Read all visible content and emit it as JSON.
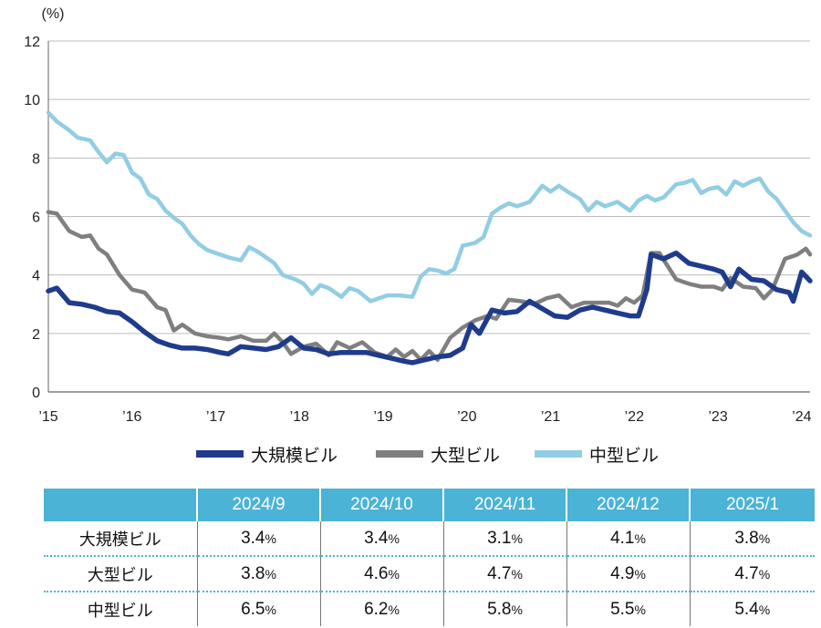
{
  "chart_data": {
    "type": "line",
    "unit_label": "(%)",
    "ylim": [
      0,
      12
    ],
    "yticks": [
      0,
      2,
      4,
      6,
      8,
      10,
      12
    ],
    "xlim": [
      2015,
      2024.1
    ],
    "xticks": [
      {
        "value": 2015,
        "label": "’15"
      },
      {
        "value": 2016,
        "label": "’16"
      },
      {
        "value": 2017,
        "label": "’17"
      },
      {
        "value": 2018,
        "label": "’18"
      },
      {
        "value": 2019,
        "label": "’19"
      },
      {
        "value": 2020,
        "label": "’20"
      },
      {
        "value": 2021,
        "label": "’21"
      },
      {
        "value": 2022,
        "label": "’22"
      },
      {
        "value": 2023,
        "label": "’23"
      },
      {
        "value": 2024,
        "label": "’24"
      }
    ],
    "grid": true,
    "series": [
      {
        "name": "大規模ビル",
        "color": "#1f3b8c",
        "points": [
          [
            2015.0,
            3.45
          ],
          [
            2015.1,
            3.55
          ],
          [
            2015.25,
            3.05
          ],
          [
            2015.4,
            3.0
          ],
          [
            2015.55,
            2.9
          ],
          [
            2015.7,
            2.75
          ],
          [
            2015.85,
            2.7
          ],
          [
            2016.0,
            2.4
          ],
          [
            2016.15,
            2.05
          ],
          [
            2016.3,
            1.75
          ],
          [
            2016.45,
            1.6
          ],
          [
            2016.6,
            1.5
          ],
          [
            2016.75,
            1.5
          ],
          [
            2016.9,
            1.45
          ],
          [
            2017.05,
            1.35
          ],
          [
            2017.15,
            1.3
          ],
          [
            2017.3,
            1.55
          ],
          [
            2017.45,
            1.5
          ],
          [
            2017.6,
            1.45
          ],
          [
            2017.75,
            1.55
          ],
          [
            2017.9,
            1.85
          ],
          [
            2018.05,
            1.5
          ],
          [
            2018.2,
            1.45
          ],
          [
            2018.35,
            1.3
          ],
          [
            2018.5,
            1.35
          ],
          [
            2018.65,
            1.35
          ],
          [
            2018.8,
            1.35
          ],
          [
            2018.95,
            1.25
          ],
          [
            2019.1,
            1.15
          ],
          [
            2019.25,
            1.05
          ],
          [
            2019.35,
            1.0
          ],
          [
            2019.5,
            1.1
          ],
          [
            2019.65,
            1.2
          ],
          [
            2019.8,
            1.25
          ],
          [
            2019.95,
            1.5
          ],
          [
            2020.05,
            2.3
          ],
          [
            2020.15,
            2.0
          ],
          [
            2020.3,
            2.8
          ],
          [
            2020.45,
            2.7
          ],
          [
            2020.6,
            2.75
          ],
          [
            2020.75,
            3.1
          ],
          [
            2020.9,
            2.85
          ],
          [
            2021.05,
            2.6
          ],
          [
            2021.2,
            2.55
          ],
          [
            2021.35,
            2.8
          ],
          [
            2021.5,
            2.9
          ],
          [
            2021.65,
            2.8
          ],
          [
            2021.8,
            2.7
          ],
          [
            2021.95,
            2.6
          ],
          [
            2022.05,
            2.6
          ],
          [
            2022.15,
            3.5
          ],
          [
            2022.2,
            4.7
          ],
          [
            2022.35,
            4.55
          ],
          [
            2022.5,
            4.75
          ],
          [
            2022.65,
            4.4
          ],
          [
            2022.8,
            4.3
          ],
          [
            2022.95,
            4.2
          ],
          [
            2023.05,
            4.1
          ],
          [
            2023.15,
            3.6
          ],
          [
            2023.25,
            4.2
          ],
          [
            2023.4,
            3.85
          ],
          [
            2023.55,
            3.8
          ],
          [
            2023.7,
            3.5
          ],
          [
            2023.85,
            3.4
          ],
          [
            2023.9,
            3.1
          ],
          [
            2024.0,
            4.1
          ],
          [
            2024.1,
            3.8
          ]
        ]
      },
      {
        "name": "大型ビル",
        "color": "#7f7f7f",
        "points": [
          [
            2015.0,
            6.15
          ],
          [
            2015.1,
            6.1
          ],
          [
            2015.25,
            5.5
          ],
          [
            2015.4,
            5.3
          ],
          [
            2015.5,
            5.35
          ],
          [
            2015.6,
            4.9
          ],
          [
            2015.7,
            4.7
          ],
          [
            2015.85,
            4.0
          ],
          [
            2016.0,
            3.5
          ],
          [
            2016.15,
            3.4
          ],
          [
            2016.3,
            2.9
          ],
          [
            2016.4,
            2.8
          ],
          [
            2016.5,
            2.1
          ],
          [
            2016.6,
            2.3
          ],
          [
            2016.75,
            2.0
          ],
          [
            2016.9,
            1.9
          ],
          [
            2017.05,
            1.85
          ],
          [
            2017.15,
            1.8
          ],
          [
            2017.3,
            1.9
          ],
          [
            2017.45,
            1.75
          ],
          [
            2017.6,
            1.75
          ],
          [
            2017.7,
            2.0
          ],
          [
            2017.8,
            1.7
          ],
          [
            2017.9,
            1.3
          ],
          [
            2018.05,
            1.55
          ],
          [
            2018.2,
            1.65
          ],
          [
            2018.35,
            1.25
          ],
          [
            2018.45,
            1.7
          ],
          [
            2018.6,
            1.5
          ],
          [
            2018.75,
            1.7
          ],
          [
            2018.9,
            1.35
          ],
          [
            2019.05,
            1.2
          ],
          [
            2019.15,
            1.45
          ],
          [
            2019.25,
            1.2
          ],
          [
            2019.35,
            1.4
          ],
          [
            2019.45,
            1.1
          ],
          [
            2019.55,
            1.4
          ],
          [
            2019.65,
            1.1
          ],
          [
            2019.8,
            1.85
          ],
          [
            2019.95,
            2.2
          ],
          [
            2020.1,
            2.45
          ],
          [
            2020.25,
            2.6
          ],
          [
            2020.35,
            2.5
          ],
          [
            2020.5,
            3.15
          ],
          [
            2020.65,
            3.1
          ],
          [
            2020.8,
            3.0
          ],
          [
            2020.95,
            3.2
          ],
          [
            2021.1,
            3.3
          ],
          [
            2021.25,
            2.9
          ],
          [
            2021.4,
            3.05
          ],
          [
            2021.55,
            3.05
          ],
          [
            2021.7,
            3.05
          ],
          [
            2021.8,
            2.95
          ],
          [
            2021.9,
            3.2
          ],
          [
            2022.0,
            3.05
          ],
          [
            2022.1,
            3.3
          ],
          [
            2022.2,
            4.75
          ],
          [
            2022.3,
            4.75
          ],
          [
            2022.4,
            4.3
          ],
          [
            2022.5,
            3.85
          ],
          [
            2022.65,
            3.7
          ],
          [
            2022.8,
            3.6
          ],
          [
            2022.95,
            3.6
          ],
          [
            2023.05,
            3.5
          ],
          [
            2023.15,
            3.9
          ],
          [
            2023.3,
            3.6
          ],
          [
            2023.45,
            3.55
          ],
          [
            2023.55,
            3.2
          ],
          [
            2023.65,
            3.5
          ],
          [
            2023.8,
            4.55
          ],
          [
            2023.95,
            4.7
          ],
          [
            2024.05,
            4.9
          ],
          [
            2024.1,
            4.7
          ]
        ]
      },
      {
        "name": "中型ビル",
        "color": "#92cde3",
        "points": [
          [
            2015.0,
            9.55
          ],
          [
            2015.1,
            9.25
          ],
          [
            2015.25,
            8.95
          ],
          [
            2015.35,
            8.7
          ],
          [
            2015.5,
            8.6
          ],
          [
            2015.6,
            8.2
          ],
          [
            2015.7,
            7.85
          ],
          [
            2015.8,
            8.15
          ],
          [
            2015.9,
            8.1
          ],
          [
            2016.0,
            7.5
          ],
          [
            2016.1,
            7.3
          ],
          [
            2016.2,
            6.75
          ],
          [
            2016.3,
            6.6
          ],
          [
            2016.4,
            6.2
          ],
          [
            2016.5,
            5.95
          ],
          [
            2016.6,
            5.75
          ],
          [
            2016.7,
            5.35
          ],
          [
            2016.8,
            5.05
          ],
          [
            2016.9,
            4.85
          ],
          [
            2017.0,
            4.75
          ],
          [
            2017.15,
            4.6
          ],
          [
            2017.3,
            4.5
          ],
          [
            2017.4,
            4.95
          ],
          [
            2017.5,
            4.8
          ],
          [
            2017.6,
            4.6
          ],
          [
            2017.7,
            4.4
          ],
          [
            2017.8,
            4.0
          ],
          [
            2017.95,
            3.85
          ],
          [
            2018.05,
            3.7
          ],
          [
            2018.15,
            3.35
          ],
          [
            2018.25,
            3.65
          ],
          [
            2018.35,
            3.55
          ],
          [
            2018.5,
            3.25
          ],
          [
            2018.6,
            3.55
          ],
          [
            2018.7,
            3.45
          ],
          [
            2018.85,
            3.1
          ],
          [
            2018.95,
            3.2
          ],
          [
            2019.05,
            3.3
          ],
          [
            2019.2,
            3.3
          ],
          [
            2019.35,
            3.25
          ],
          [
            2019.45,
            3.95
          ],
          [
            2019.55,
            4.2
          ],
          [
            2019.65,
            4.15
          ],
          [
            2019.75,
            4.05
          ],
          [
            2019.85,
            4.2
          ],
          [
            2019.95,
            5.0
          ],
          [
            2020.1,
            5.1
          ],
          [
            2020.2,
            5.3
          ],
          [
            2020.3,
            6.1
          ],
          [
            2020.4,
            6.3
          ],
          [
            2020.5,
            6.45
          ],
          [
            2020.6,
            6.35
          ],
          [
            2020.75,
            6.5
          ],
          [
            2020.9,
            7.05
          ],
          [
            2021.0,
            6.85
          ],
          [
            2021.1,
            7.05
          ],
          [
            2021.2,
            6.85
          ],
          [
            2021.35,
            6.6
          ],
          [
            2021.45,
            6.2
          ],
          [
            2021.55,
            6.5
          ],
          [
            2021.65,
            6.35
          ],
          [
            2021.8,
            6.5
          ],
          [
            2021.95,
            6.2
          ],
          [
            2022.05,
            6.55
          ],
          [
            2022.15,
            6.7
          ],
          [
            2022.25,
            6.55
          ],
          [
            2022.35,
            6.65
          ],
          [
            2022.5,
            7.1
          ],
          [
            2022.6,
            7.15
          ],
          [
            2022.7,
            7.25
          ],
          [
            2022.8,
            6.8
          ],
          [
            2022.9,
            6.95
          ],
          [
            2023.0,
            7.0
          ],
          [
            2023.1,
            6.75
          ],
          [
            2023.2,
            7.2
          ],
          [
            2023.3,
            7.05
          ],
          [
            2023.4,
            7.2
          ],
          [
            2023.5,
            7.3
          ],
          [
            2023.6,
            6.85
          ],
          [
            2023.7,
            6.6
          ],
          [
            2023.8,
            6.2
          ],
          [
            2023.9,
            5.8
          ],
          [
            2024.0,
            5.5
          ],
          [
            2024.1,
            5.35
          ]
        ]
      }
    ]
  },
  "table": {
    "unit": "%",
    "columns": [
      "2024/9",
      "2024/10",
      "2024/11",
      "2024/12",
      "2025/1"
    ],
    "rows": [
      {
        "label": "大規模ビル",
        "values": [
          "3.4",
          "3.4",
          "3.1",
          "4.1",
          "3.8"
        ]
      },
      {
        "label": "大型ビル",
        "values": [
          "3.8",
          "4.6",
          "4.7",
          "4.9",
          "4.7"
        ]
      },
      {
        "label": "中型ビル",
        "values": [
          "6.5",
          "6.2",
          "5.8",
          "5.5",
          "5.4"
        ]
      }
    ]
  }
}
